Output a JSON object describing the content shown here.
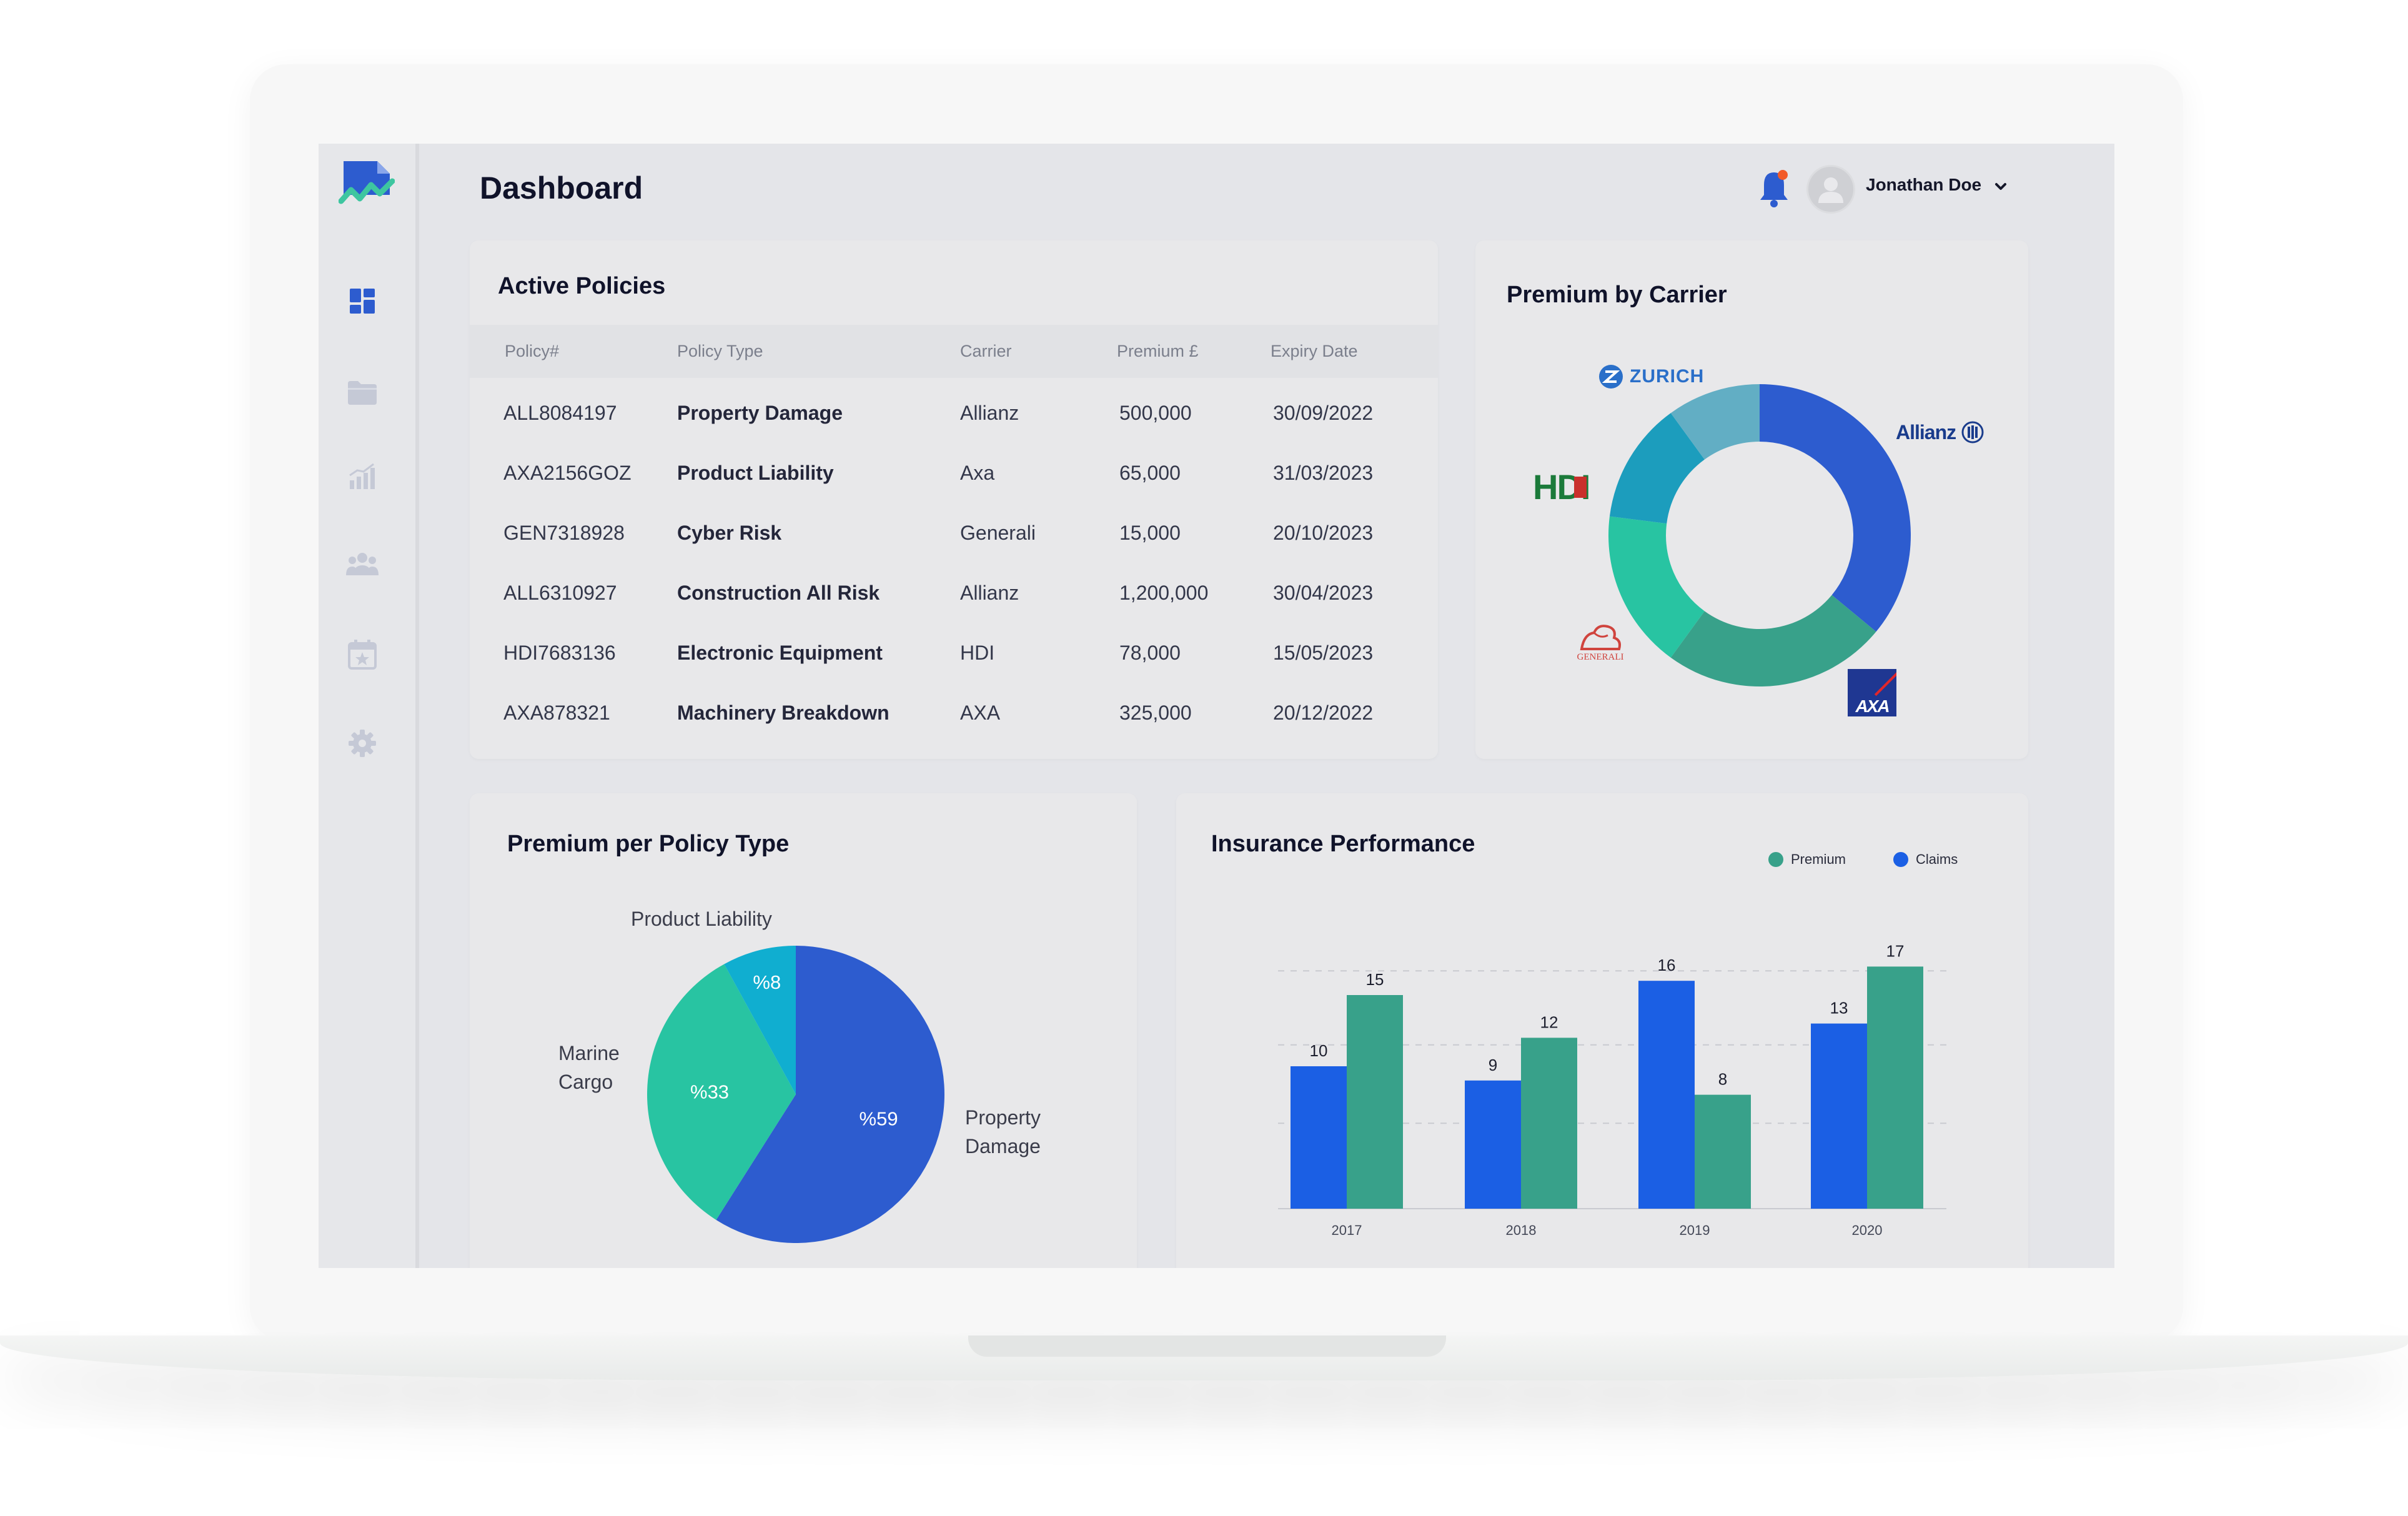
{
  "header": {
    "title": "Dashboard",
    "user_name": "Jonathan Doe"
  },
  "nav_items": [
    "dashboard-icon",
    "folder-icon",
    "analytics-icon",
    "team-icon",
    "calendar-icon",
    "settings-icon"
  ],
  "active_policies": {
    "title": "Active Policies",
    "columns": [
      "Policy#",
      "Policy Type",
      "Carrier",
      "Premium £",
      "Expiry Date"
    ],
    "rows": [
      {
        "policy": "ALL8084197",
        "type": "Property Damage",
        "carrier": "Allianz",
        "premium": "500,000",
        "expiry": "30/09/2022"
      },
      {
        "policy": "AXA2156GOZ",
        "type": "Product Liability",
        "carrier": "Axa",
        "premium": "65,000",
        "expiry": "31/03/2023"
      },
      {
        "policy": "GEN7318928",
        "type": "Cyber Risk",
        "carrier": "Generali",
        "premium": "15,000",
        "expiry": "20/10/2023"
      },
      {
        "policy": "ALL6310927",
        "type": "Construction All Risk",
        "carrier": "Allianz",
        "premium": "1,200,000",
        "expiry": "30/04/2023"
      },
      {
        "policy": "HDI7683136",
        "type": "Electronic Equipment",
        "carrier": "HDI",
        "premium": "78,000",
        "expiry": "15/05/2023"
      },
      {
        "policy": "AXA878321",
        "type": "Machinery Breakdown",
        "carrier": "AXA",
        "premium": "325,000",
        "expiry": "20/12/2022"
      }
    ]
  },
  "premium_by_carrier": {
    "title": "Premium by Carrier",
    "logos": {
      "zurich": "ZURICH",
      "allianz": "Allianz",
      "hdi": "HDI",
      "generali": "GENERALI",
      "axa": "AXA"
    },
    "colors": {
      "allianz": "#2d5ccf",
      "axa": "#38a18a",
      "generali": "#28c4a2",
      "hdi": "#1c9dbd",
      "zurich": "#62aec4"
    }
  },
  "premium_per_policy_type": {
    "title": "Premium per Policy Type",
    "labels": {
      "product_liability": "Product Liability",
      "marine_line1": "Marine",
      "marine_line2": "Cargo",
      "property_line1": "Property",
      "property_line2": "Damage"
    },
    "slice_labels": {
      "property": "%59",
      "marine": "%33",
      "product": "%8"
    }
  },
  "insurance_performance": {
    "title": "Insurance Performance",
    "legend": {
      "premium": "Premium",
      "claims": "Claims"
    },
    "colors": {
      "premium": "#38a18a",
      "claims": "#1b5fe4"
    }
  },
  "chart_data": [
    {
      "type": "pie",
      "chart": "Premium by Carrier (donut)",
      "slices": [
        {
          "label": "Allianz",
          "value": 36
        },
        {
          "label": "AXA",
          "value": 24
        },
        {
          "label": "Generali",
          "value": 17
        },
        {
          "label": "HDI",
          "value": 13
        },
        {
          "label": "Zurich",
          "value": 10
        }
      ]
    },
    {
      "type": "pie",
      "title": "Premium per Policy Type",
      "slices": [
        {
          "label": "Property Damage",
          "value": 59
        },
        {
          "label": "Marine Cargo",
          "value": 33
        },
        {
          "label": "Product Liability",
          "value": 8
        }
      ]
    },
    {
      "type": "bar",
      "title": "Insurance Performance",
      "categories": [
        "2017",
        "2018",
        "2019",
        "2020"
      ],
      "series": [
        {
          "name": "Claims",
          "values": [
            10,
            9,
            16,
            13
          ]
        },
        {
          "name": "Premium",
          "values": [
            15,
            12,
            8,
            17
          ]
        }
      ],
      "ylim": [
        0,
        18
      ],
      "grid": true,
      "legend": "top-right"
    }
  ]
}
